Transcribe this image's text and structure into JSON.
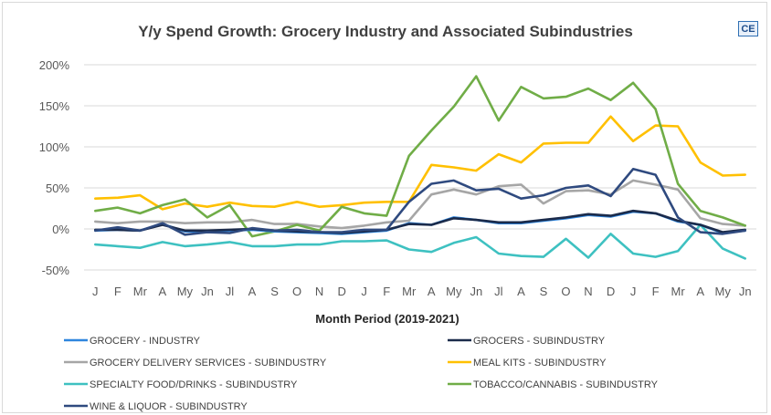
{
  "chart_data": {
    "type": "line",
    "title": "Y/y Spend Growth: Grocery Industry and Associated Subindustries",
    "xlabel": "Month Period (2019-2021)",
    "ylabel": "",
    "ylim": [
      -50,
      200
    ],
    "yticks": [
      "200%",
      "150%",
      "100%",
      "50%",
      "0%",
      "-50%"
    ],
    "ytick_values": [
      200,
      150,
      100,
      50,
      0,
      -50
    ],
    "grid": true,
    "legend_position": "bottom",
    "x": [
      "J",
      "F",
      "Mr",
      "A",
      "My",
      "Jn",
      "Jl",
      "A",
      "S",
      "O",
      "N",
      "D",
      "J",
      "F",
      "Mr",
      "A",
      "My",
      "Jn",
      "Jl",
      "A",
      "S",
      "O",
      "N",
      "D",
      "J",
      "F",
      "Mr",
      "A",
      "My",
      "Jn"
    ],
    "series": [
      {
        "name": "GROCERY - INDUSTRY",
        "color": "#2e86de",
        "values": [
          -2,
          -1,
          -2,
          6,
          -3,
          -3,
          -2,
          -1,
          -3,
          -4,
          -5,
          -6,
          -4,
          -2,
          7,
          5,
          14,
          11,
          7,
          7,
          10,
          13,
          17,
          15,
          21,
          19,
          9,
          5,
          -5,
          -2
        ]
      },
      {
        "name": "GROCERS - SUBINDUSTRY",
        "color": "#1b2b4b",
        "values": [
          -1,
          -1,
          -2,
          5,
          -2,
          -2,
          -1,
          0,
          -2,
          -3,
          -4,
          -5,
          -3,
          -1,
          6,
          5,
          13,
          11,
          8,
          8,
          11,
          14,
          18,
          16,
          22,
          19,
          10,
          5,
          -4,
          -1
        ]
      },
      {
        "name": "GROCERY DELIVERY SERVICES - SUBINDUSTRY",
        "color": "#a6a6a6",
        "values": [
          9,
          7,
          9,
          9,
          7,
          8,
          8,
          11,
          6,
          6,
          3,
          1,
          4,
          8,
          10,
          42,
          48,
          42,
          52,
          54,
          31,
          46,
          47,
          42,
          59,
          54,
          48,
          13,
          6,
          4
        ]
      },
      {
        "name": "MEAL KITS - SUBINDUSTRY",
        "color": "#ffc000",
        "values": [
          37,
          38,
          41,
          24,
          31,
          27,
          32,
          28,
          27,
          33,
          27,
          29,
          32,
          33,
          33,
          78,
          75,
          71,
          91,
          81,
          104,
          105,
          105,
          137,
          107,
          126,
          125,
          81,
          65,
          66
        ]
      },
      {
        "name": "SPECIALTY FOOD/DRINKS - SUBINDUSTRY",
        "color": "#3ec1c1",
        "values": [
          -19,
          -21,
          -23,
          -16,
          -21,
          -19,
          -16,
          -21,
          -21,
          -19,
          -19,
          -15,
          -15,
          -14,
          -25,
          -28,
          -17,
          -10,
          -30,
          -33,
          -34,
          -12,
          -35,
          -6,
          -30,
          -34,
          -27,
          5,
          -24,
          -36
        ]
      },
      {
        "name": "TOBACCO/CANNABIS - SUBINDUSTRY",
        "color": "#70ad47",
        "values": [
          22,
          26,
          19,
          29,
          36,
          14,
          29,
          -9,
          -3,
          5,
          -2,
          27,
          19,
          16,
          89,
          120,
          149,
          186,
          132,
          173,
          159,
          161,
          171,
          157,
          178,
          146,
          55,
          22,
          14,
          4
        ]
      },
      {
        "name": "WINE & LIQUOR - SUBINDUSTRY",
        "color": "#2f4a7f",
        "values": [
          -2,
          2,
          -2,
          7,
          -7,
          -4,
          -5,
          1,
          -2,
          -1,
          -4,
          -4,
          -1,
          -1,
          33,
          55,
          59,
          47,
          49,
          37,
          41,
          50,
          53,
          40,
          73,
          66,
          14,
          -4,
          -6,
          -2
        ]
      }
    ]
  },
  "logo_text": "CE"
}
